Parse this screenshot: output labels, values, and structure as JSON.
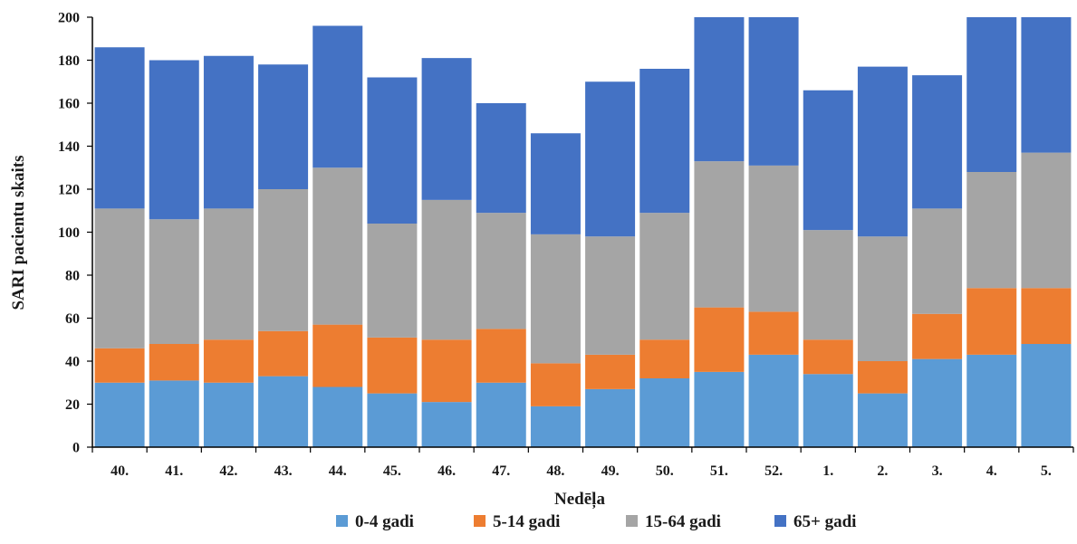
{
  "chart_data": {
    "type": "bar",
    "stacked": true,
    "title": "",
    "xlabel": "Nedēļa",
    "ylabel": "SARI pacientu skaits",
    "ylim": [
      0,
      200
    ],
    "yticks": [
      0,
      20,
      40,
      60,
      80,
      100,
      120,
      140,
      160,
      180,
      200
    ],
    "grid": false,
    "legend_position": "bottom",
    "categories": [
      "40.",
      "41.",
      "42.",
      "43.",
      "44.",
      "45.",
      "46.",
      "47.",
      "48.",
      "49.",
      "50.",
      "51.",
      "52.",
      "1.",
      "2.",
      "3.",
      "4.",
      "5."
    ],
    "series": [
      {
        "name": "0-4 gadi",
        "color": "#5b9bd5",
        "values": [
          30,
          31,
          30,
          33,
          28,
          25,
          21,
          30,
          19,
          27,
          32,
          35,
          43,
          34,
          25,
          41,
          43,
          48
        ]
      },
      {
        "name": "5-14 gadi",
        "color": "#ed7d31",
        "values": [
          16,
          17,
          20,
          21,
          29,
          26,
          29,
          25,
          20,
          16,
          18,
          30,
          20,
          16,
          15,
          21,
          31,
          26
        ]
      },
      {
        "name": "15-64 gadi",
        "color": "#a5a5a5",
        "values": [
          65,
          58,
          61,
          66,
          73,
          53,
          65,
          54,
          60,
          55,
          59,
          68,
          68,
          51,
          58,
          49,
          54,
          63
        ]
      },
      {
        "name": "65+ gadi",
        "color": "#4472c4",
        "values": [
          75,
          74,
          71,
          58,
          66,
          68,
          66,
          51,
          47,
          72,
          67,
          67,
          69,
          65,
          79,
          62,
          72,
          63
        ]
      }
    ]
  }
}
